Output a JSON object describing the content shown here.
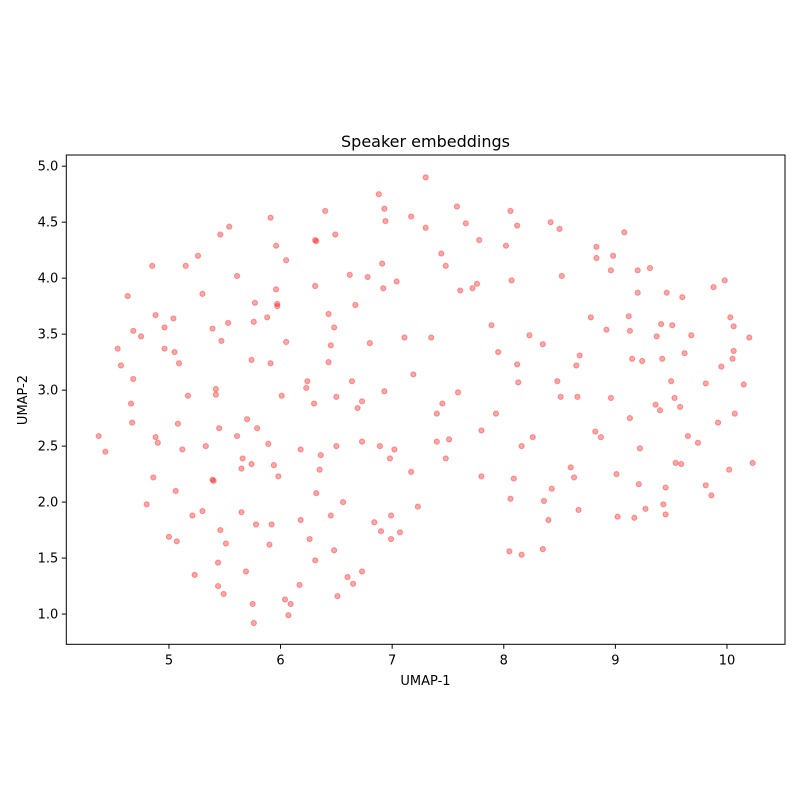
{
  "chart_data": {
    "type": "scatter",
    "title": "Speaker embeddings",
    "xlabel": "UMAP-1",
    "ylabel": "UMAP-2",
    "xlim": [
      4.08,
      10.52
    ],
    "ylim": [
      0.73,
      5.1
    ],
    "xticks": [
      "5",
      "6",
      "7",
      "8",
      "9",
      "10"
    ],
    "yticks": [
      "1.0",
      "1.5",
      "2.0",
      "2.5",
      "3.0",
      "3.5",
      "4.0",
      "4.5",
      "5.0"
    ],
    "grid": false,
    "marker_color": "#ff0000",
    "marker_alpha": 0.35,
    "points": [
      [
        5.91,
        4.54
      ],
      [
        5.54,
        4.46
      ],
      [
        5.46,
        4.39
      ],
      [
        5.96,
        4.29
      ],
      [
        5.26,
        4.2
      ],
      [
        4.85,
        4.11
      ],
      [
        5.15,
        4.11
      ],
      [
        6.05,
        4.16
      ],
      [
        5.61,
        4.02
      ],
      [
        4.63,
        3.84
      ],
      [
        5.3,
        3.86
      ],
      [
        5.96,
        3.9
      ],
      [
        5.77,
        3.78
      ],
      [
        5.97,
        3.77
      ],
      [
        5.97,
        3.75
      ],
      [
        4.88,
        3.67
      ],
      [
        5.04,
        3.64
      ],
      [
        4.96,
        3.56
      ],
      [
        4.68,
        3.53
      ],
      [
        4.75,
        3.48
      ],
      [
        5.39,
        3.55
      ],
      [
        5.53,
        3.6
      ],
      [
        5.76,
        3.61
      ],
      [
        5.88,
        3.65
      ],
      [
        5.47,
        3.44
      ],
      [
        6.05,
        3.43
      ],
      [
        4.54,
        3.37
      ],
      [
        4.96,
        3.37
      ],
      [
        5.05,
        3.34
      ],
      [
        4.57,
        3.22
      ],
      [
        5.09,
        3.24
      ],
      [
        5.74,
        3.27
      ],
      [
        5.91,
        3.24
      ],
      [
        4.68,
        3.1
      ],
      [
        5.42,
        3.01
      ],
      [
        5.42,
        2.96
      ],
      [
        5.17,
        2.95
      ],
      [
        6.01,
        2.95
      ],
      [
        4.66,
        2.88
      ],
      [
        4.67,
        2.71
      ],
      [
        5.08,
        2.7
      ],
      [
        5.45,
        2.66
      ],
      [
        5.7,
        2.74
      ],
      [
        5.79,
        2.66
      ],
      [
        4.37,
        2.59
      ],
      [
        4.88,
        2.58
      ],
      [
        4.9,
        2.53
      ],
      [
        5.61,
        2.59
      ],
      [
        5.89,
        2.52
      ],
      [
        6.18,
        2.47
      ],
      [
        4.43,
        2.45
      ],
      [
        5.12,
        2.47
      ],
      [
        5.33,
        2.5
      ],
      [
        5.66,
        2.39
      ],
      [
        5.74,
        2.34
      ],
      [
        5.94,
        2.33
      ],
      [
        5.65,
        2.3
      ],
      [
        5.98,
        2.23
      ],
      [
        4.86,
        2.22
      ],
      [
        5.39,
        2.2
      ],
      [
        5.4,
        2.19
      ],
      [
        5.06,
        2.1
      ],
      [
        4.8,
        1.98
      ],
      [
        5.3,
        1.92
      ],
      [
        5.21,
        1.88
      ],
      [
        5.65,
        1.91
      ],
      [
        6.18,
        1.84
      ],
      [
        5.78,
        1.8
      ],
      [
        5.92,
        1.8
      ],
      [
        5.46,
        1.75
      ],
      [
        5.0,
        1.69
      ],
      [
        5.07,
        1.65
      ],
      [
        5.51,
        1.63
      ],
      [
        5.9,
        1.62
      ],
      [
        5.44,
        1.46
      ],
      [
        5.69,
        1.38
      ],
      [
        5.23,
        1.35
      ],
      [
        5.44,
        1.25
      ],
      [
        5.49,
        1.18
      ],
      [
        6.17,
        1.26
      ],
      [
        6.04,
        1.13
      ],
      [
        6.09,
        1.09
      ],
      [
        5.75,
        1.09
      ],
      [
        6.07,
        0.99
      ],
      [
        5.76,
        0.92
      ],
      [
        7.3,
        4.9
      ],
      [
        6.88,
        4.75
      ],
      [
        6.4,
        4.6
      ],
      [
        6.93,
        4.62
      ],
      [
        6.94,
        4.51
      ],
      [
        7.17,
        4.55
      ],
      [
        7.3,
        4.45
      ],
      [
        7.58,
        4.64
      ],
      [
        7.66,
        4.49
      ],
      [
        8.06,
        4.6
      ],
      [
        8.12,
        4.47
      ],
      [
        6.49,
        4.39
      ],
      [
        6.31,
        4.34
      ],
      [
        6.32,
        4.33
      ],
      [
        7.78,
        4.34
      ],
      [
        8.02,
        4.29
      ],
      [
        7.44,
        4.22
      ],
      [
        7.48,
        4.11
      ],
      [
        6.91,
        4.13
      ],
      [
        6.62,
        4.03
      ],
      [
        6.78,
        4.01
      ],
      [
        7.04,
        3.97
      ],
      [
        6.92,
        3.91
      ],
      [
        6.31,
        3.93
      ],
      [
        8.07,
        3.98
      ],
      [
        7.76,
        3.95
      ],
      [
        7.72,
        3.91
      ],
      [
        7.61,
        3.89
      ],
      [
        6.67,
        3.76
      ],
      [
        6.43,
        3.68
      ],
      [
        6.48,
        3.56
      ],
      [
        7.89,
        3.58
      ],
      [
        8.23,
        3.49
      ],
      [
        8.35,
        3.41
      ],
      [
        7.11,
        3.47
      ],
      [
        7.35,
        3.47
      ],
      [
        6.8,
        3.42
      ],
      [
        6.45,
        3.4
      ],
      [
        6.43,
        3.25
      ],
      [
        7.95,
        3.34
      ],
      [
        8.12,
        3.23
      ],
      [
        7.19,
        3.14
      ],
      [
        6.24,
        3.08
      ],
      [
        6.23,
        3.02
      ],
      [
        6.64,
        3.08
      ],
      [
        8.13,
        3.07
      ],
      [
        6.93,
        2.99
      ],
      [
        6.5,
        2.94
      ],
      [
        7.59,
        2.98
      ],
      [
        6.73,
        2.9
      ],
      [
        6.3,
        2.88
      ],
      [
        6.69,
        2.84
      ],
      [
        7.45,
        2.88
      ],
      [
        7.4,
        2.79
      ],
      [
        7.93,
        2.79
      ],
      [
        7.8,
        2.64
      ],
      [
        8.26,
        2.58
      ],
      [
        8.16,
        2.5
      ],
      [
        6.5,
        2.5
      ],
      [
        6.73,
        2.54
      ],
      [
        6.89,
        2.5
      ],
      [
        7.02,
        2.47
      ],
      [
        7.4,
        2.54
      ],
      [
        7.51,
        2.56
      ],
      [
        6.36,
        2.42
      ],
      [
        6.98,
        2.39
      ],
      [
        7.48,
        2.39
      ],
      [
        6.35,
        2.29
      ],
      [
        7.17,
        2.27
      ],
      [
        7.8,
        2.23
      ],
      [
        8.09,
        2.21
      ],
      [
        6.32,
        2.08
      ],
      [
        6.56,
        2.0
      ],
      [
        7.23,
        1.96
      ],
      [
        8.06,
        2.03
      ],
      [
        8.36,
        2.01
      ],
      [
        6.45,
        1.88
      ],
      [
        6.99,
        1.88
      ],
      [
        6.84,
        1.82
      ],
      [
        6.9,
        1.74
      ],
      [
        7.07,
        1.73
      ],
      [
        6.99,
        1.67
      ],
      [
        6.26,
        1.67
      ],
      [
        6.48,
        1.57
      ],
      [
        6.31,
        1.48
      ],
      [
        8.05,
        1.56
      ],
      [
        8.16,
        1.53
      ],
      [
        8.35,
        1.58
      ],
      [
        6.73,
        1.38
      ],
      [
        6.6,
        1.33
      ],
      [
        6.65,
        1.27
      ],
      [
        6.51,
        1.16
      ],
      [
        8.42,
        4.5
      ],
      [
        8.5,
        4.44
      ],
      [
        9.08,
        4.41
      ],
      [
        8.83,
        4.28
      ],
      [
        8.98,
        4.2
      ],
      [
        8.83,
        4.18
      ],
      [
        8.96,
        4.07
      ],
      [
        9.2,
        4.07
      ],
      [
        9.31,
        4.09
      ],
      [
        8.52,
        4.02
      ],
      [
        9.98,
        3.98
      ],
      [
        9.88,
        3.92
      ],
      [
        9.2,
        3.87
      ],
      [
        9.46,
        3.87
      ],
      [
        9.6,
        3.83
      ],
      [
        8.78,
        3.65
      ],
      [
        9.12,
        3.66
      ],
      [
        8.92,
        3.54
      ],
      [
        9.13,
        3.53
      ],
      [
        9.41,
        3.59
      ],
      [
        9.51,
        3.58
      ],
      [
        10.03,
        3.65
      ],
      [
        10.06,
        3.57
      ],
      [
        9.37,
        3.48
      ],
      [
        9.68,
        3.49
      ],
      [
        10.2,
        3.47
      ],
      [
        8.68,
        3.31
      ],
      [
        8.65,
        3.22
      ],
      [
        9.15,
        3.28
      ],
      [
        9.24,
        3.26
      ],
      [
        9.42,
        3.28
      ],
      [
        9.62,
        3.33
      ],
      [
        10.06,
        3.35
      ],
      [
        10.05,
        3.28
      ],
      [
        9.95,
        3.21
      ],
      [
        8.48,
        3.08
      ],
      [
        9.5,
        3.08
      ],
      [
        9.81,
        3.06
      ],
      [
        10.15,
        3.05
      ],
      [
        8.51,
        2.94
      ],
      [
        8.66,
        2.94
      ],
      [
        8.96,
        2.93
      ],
      [
        9.53,
        2.93
      ],
      [
        9.36,
        2.87
      ],
      [
        9.4,
        2.82
      ],
      [
        9.58,
        2.85
      ],
      [
        9.13,
        2.75
      ],
      [
        10.07,
        2.79
      ],
      [
        9.92,
        2.71
      ],
      [
        8.82,
        2.63
      ],
      [
        8.87,
        2.58
      ],
      [
        9.65,
        2.59
      ],
      [
        9.74,
        2.53
      ],
      [
        9.22,
        2.48
      ],
      [
        9.54,
        2.35
      ],
      [
        9.59,
        2.34
      ],
      [
        10.23,
        2.35
      ],
      [
        10.02,
        2.29
      ],
      [
        8.6,
        2.31
      ],
      [
        8.63,
        2.22
      ],
      [
        9.01,
        2.25
      ],
      [
        9.21,
        2.16
      ],
      [
        9.45,
        2.13
      ],
      [
        9.81,
        2.15
      ],
      [
        9.86,
        2.06
      ],
      [
        8.43,
        2.12
      ],
      [
        8.67,
        1.93
      ],
      [
        8.4,
        1.84
      ],
      [
        9.02,
        1.87
      ],
      [
        9.17,
        1.86
      ],
      [
        9.27,
        1.94
      ],
      [
        9.43,
        1.98
      ],
      [
        9.45,
        1.89
      ]
    ]
  }
}
